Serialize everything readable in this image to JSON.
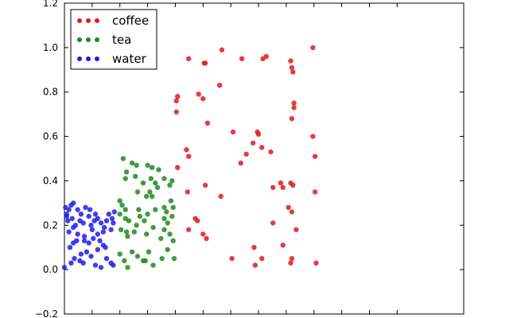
{
  "chart_data": {
    "type": "scatter",
    "xlim": [
      0,
      3.6
    ],
    "ylim": [
      -0.2,
      1.2
    ],
    "yticks": [
      -0.2,
      0.0,
      0.2,
      0.4,
      0.6,
      0.8,
      1.0,
      1.2
    ],
    "yticklabels": [
      "−0.2",
      "0.0",
      "0.2",
      "0.4",
      "0.6",
      "0.8",
      "1.0",
      "1.2"
    ],
    "xticks": [
      0.25,
      0.5,
      0.75,
      1.0,
      1.25,
      1.5,
      1.75,
      2.0,
      2.25,
      2.5,
      2.75,
      3.0
    ],
    "legend_position": "top-left",
    "grid": false,
    "series": [
      {
        "name": "coffee",
        "color": "#e31a1c",
        "points": [
          [
            1.12,
            0.95
          ],
          [
            1.26,
            0.93
          ],
          [
            1.27,
            0.93
          ],
          [
            1.42,
            0.99
          ],
          [
            1.6,
            0.95
          ],
          [
            1.79,
            0.95
          ],
          [
            1.82,
            0.96
          ],
          [
            2.04,
            0.94
          ],
          [
            2.05,
            0.91
          ],
          [
            2.06,
            0.89
          ],
          [
            2.24,
            1.0
          ],
          [
            1.4,
            0.83
          ],
          [
            1.01,
            0.76
          ],
          [
            1.02,
            0.78
          ],
          [
            1.01,
            0.71
          ],
          [
            1.21,
            0.79
          ],
          [
            1.25,
            0.77
          ],
          [
            2.07,
            0.75
          ],
          [
            2.07,
            0.73
          ],
          [
            2.05,
            0.68
          ],
          [
            1.29,
            0.66
          ],
          [
            1.52,
            0.62
          ],
          [
            1.7,
            0.57
          ],
          [
            1.74,
            0.62
          ],
          [
            1.75,
            0.61
          ],
          [
            2.24,
            0.6
          ],
          [
            2.26,
            0.51
          ],
          [
            1.1,
            0.54
          ],
          [
            1.12,
            0.51
          ],
          [
            1.64,
            0.52
          ],
          [
            1.59,
            0.48
          ],
          [
            1.78,
            0.55
          ],
          [
            1.86,
            0.53
          ],
          [
            1.02,
            0.46
          ],
          [
            1.11,
            0.35
          ],
          [
            1.27,
            0.38
          ],
          [
            1.18,
            0.23
          ],
          [
            1.2,
            0.22
          ],
          [
            1.41,
            0.33
          ],
          [
            1.88,
            0.37
          ],
          [
            1.95,
            0.39
          ],
          [
            1.97,
            0.37
          ],
          [
            2.04,
            0.39
          ],
          [
            2.06,
            0.38
          ],
          [
            2.26,
            0.35
          ],
          [
            2.02,
            0.28
          ],
          [
            1.88,
            0.21
          ],
          [
            2.05,
            0.26
          ],
          [
            2.09,
            0.18
          ],
          [
            1.12,
            0.18
          ],
          [
            1.25,
            0.16
          ],
          [
            1.28,
            0.14
          ],
          [
            1.97,
            0.11
          ],
          [
            1.71,
            0.1
          ],
          [
            2.05,
            0.05
          ],
          [
            1.51,
            0.05
          ],
          [
            1.78,
            0.05
          ],
          [
            2.04,
            0.03
          ],
          [
            2.27,
            0.03
          ],
          [
            1.72,
            0.02
          ]
        ]
      },
      {
        "name": "tea",
        "color": "#1f8a1f",
        "points": [
          [
            0.53,
            0.5
          ],
          [
            0.61,
            0.48
          ],
          [
            0.65,
            0.47
          ],
          [
            0.75,
            0.47
          ],
          [
            0.79,
            0.46
          ],
          [
            0.56,
            0.44
          ],
          [
            0.55,
            0.41
          ],
          [
            0.64,
            0.42
          ],
          [
            0.85,
            0.45
          ],
          [
            0.78,
            0.41
          ],
          [
            0.71,
            0.39
          ],
          [
            0.82,
            0.39
          ],
          [
            0.9,
            0.41
          ],
          [
            0.95,
            0.38
          ],
          [
            0.97,
            0.4
          ],
          [
            0.5,
            0.31
          ],
          [
            0.52,
            0.29
          ],
          [
            0.55,
            0.27
          ],
          [
            0.66,
            0.35
          ],
          [
            0.74,
            0.33
          ],
          [
            0.77,
            0.35
          ],
          [
            0.84,
            0.37
          ],
          [
            0.79,
            0.33
          ],
          [
            0.9,
            0.28
          ],
          [
            0.92,
            0.26
          ],
          [
            0.96,
            0.31
          ],
          [
            0.98,
            0.28
          ],
          [
            0.5,
            0.25
          ],
          [
            0.55,
            0.23
          ],
          [
            0.58,
            0.22
          ],
          [
            0.67,
            0.27
          ],
          [
            0.68,
            0.24
          ],
          [
            0.72,
            0.22
          ],
          [
            0.75,
            0.25
          ],
          [
            0.82,
            0.27
          ],
          [
            0.9,
            0.23
          ],
          [
            0.93,
            0.21
          ],
          [
            0.97,
            0.24
          ],
          [
            0.51,
            0.18
          ],
          [
            0.56,
            0.17
          ],
          [
            0.57,
            0.15
          ],
          [
            0.63,
            0.17
          ],
          [
            0.65,
            0.2
          ],
          [
            0.74,
            0.16
          ],
          [
            0.8,
            0.19
          ],
          [
            0.87,
            0.14
          ],
          [
            0.9,
            0.18
          ],
          [
            0.95,
            0.16
          ],
          [
            0.98,
            0.13
          ],
          [
            0.5,
            0.07
          ],
          [
            0.54,
            0.04
          ],
          [
            0.57,
            0.01
          ],
          [
            0.61,
            0.08
          ],
          [
            0.66,
            0.06
          ],
          [
            0.71,
            0.04
          ],
          [
            0.73,
            0.04
          ],
          [
            0.76,
            0.08
          ],
          [
            0.8,
            0.02
          ],
          [
            0.88,
            0.05
          ],
          [
            0.93,
            0.09
          ],
          [
            0.99,
            0.05
          ]
        ]
      },
      {
        "name": "water",
        "color": "#1f1fe6",
        "points": [
          [
            0.01,
            0.28
          ],
          [
            0.02,
            0.25
          ],
          [
            0.04,
            0.27
          ],
          [
            0.06,
            0.29
          ],
          [
            0.08,
            0.3
          ],
          [
            0.12,
            0.27
          ],
          [
            0.15,
            0.25
          ],
          [
            0.19,
            0.28
          ],
          [
            0.23,
            0.27
          ],
          [
            0.28,
            0.25
          ],
          [
            0.3,
            0.23
          ],
          [
            0.38,
            0.22
          ],
          [
            0.4,
            0.25
          ],
          [
            0.45,
            0.26
          ],
          [
            0.02,
            0.24
          ],
          [
            0.03,
            0.22
          ],
          [
            0.07,
            0.23
          ],
          [
            0.1,
            0.2
          ],
          [
            0.14,
            0.22
          ],
          [
            0.17,
            0.21
          ],
          [
            0.22,
            0.24
          ],
          [
            0.24,
            0.2
          ],
          [
            0.27,
            0.22
          ],
          [
            0.33,
            0.21
          ],
          [
            0.36,
            0.19
          ],
          [
            0.43,
            0.23
          ],
          [
            0.44,
            0.21
          ],
          [
            0.04,
            0.17
          ],
          [
            0.08,
            0.19
          ],
          [
            0.12,
            0.16
          ],
          [
            0.18,
            0.15
          ],
          [
            0.25,
            0.18
          ],
          [
            0.3,
            0.16
          ],
          [
            0.35,
            0.17
          ],
          [
            0.42,
            0.18
          ],
          [
            0.05,
            0.1
          ],
          [
            0.08,
            0.12
          ],
          [
            0.11,
            0.13
          ],
          [
            0.18,
            0.13
          ],
          [
            0.22,
            0.12
          ],
          [
            0.26,
            0.14
          ],
          [
            0.32,
            0.13
          ],
          [
            0.35,
            0.11
          ],
          [
            0.37,
            0.1
          ],
          [
            0.3,
            0.09
          ],
          [
            0.2,
            0.08
          ],
          [
            0.15,
            0.07
          ],
          [
            0.06,
            0.03
          ],
          [
            0.09,
            0.05
          ],
          [
            0.14,
            0.04
          ],
          [
            0.17,
            0.03
          ],
          [
            0.24,
            0.06
          ],
          [
            0.28,
            0.02
          ],
          [
            0.33,
            0.01
          ],
          [
            0.38,
            0.05
          ],
          [
            0.42,
            0.03
          ],
          [
            0.44,
            0.02
          ],
          [
            0.0,
            0.01
          ]
        ]
      }
    ]
  }
}
